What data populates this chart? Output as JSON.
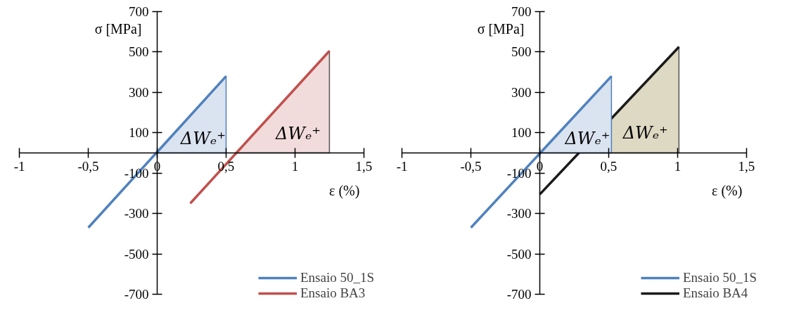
{
  "chart_data": [
    {
      "type": "line",
      "xlabel": "ε (%)",
      "ylabel": "σ [MPa]",
      "xlim": [
        -1,
        1.5
      ],
      "ylim": [
        -700,
        700
      ],
      "xticks": [
        -1,
        {
          "value": -0.5,
          "label": "-0,5"
        },
        0,
        {
          "value": 0.5,
          "label": "0,5"
        },
        1,
        {
          "value": 1.5,
          "label": "1,5"
        }
      ],
      "yticks": [
        -700,
        -500,
        -300,
        -100,
        100,
        300,
        500,
        700
      ],
      "grid": false,
      "legend": "bottom right",
      "line_style": "solid",
      "marker": "none",
      "series": [
        {
          "type": "area",
          "color": "#dae3f0",
          "x": [
            0,
            0.5
          ],
          "values": [
            0,
            380
          ]
        },
        {
          "type": "area",
          "color": "#f2dcdb",
          "x": [
            0.57,
            1.25
          ],
          "values": [
            0,
            505
          ]
        },
        {
          "name": "Ensaio 50_1S",
          "color": "#4f81bd",
          "x": [
            -0.5,
            0.5
          ],
          "values": [
            -370,
            380
          ]
        },
        {
          "name": "Ensaio BA3",
          "color": "#c0504d",
          "x": [
            0.24,
            1.25
          ],
          "values": [
            -250,
            505
          ]
        }
      ],
      "annotations": [
        "ΔWₑ⁺",
        "ΔWₑ⁺"
      ]
    },
    {
      "type": "line",
      "xlabel": "ε (%)",
      "ylabel": "σ [MPa]",
      "xlim": [
        -1,
        1.5
      ],
      "ylim": [
        -700,
        700
      ],
      "xticks": [
        -1,
        {
          "value": -0.5,
          "label": "-0,5"
        },
        0,
        {
          "value": 0.5,
          "label": "0,5"
        },
        1,
        {
          "value": 1.5,
          "label": "1,5"
        }
      ],
      "yticks": [
        -700,
        -500,
        -300,
        -100,
        100,
        300,
        500,
        700
      ],
      "grid": false,
      "legend": "bottom right",
      "line_style": "solid",
      "marker": "none",
      "series": [
        {
          "type": "area",
          "color": "#ddd9c3",
          "x": [
            0.28,
            1.01
          ],
          "values": [
            0,
            525
          ]
        },
        {
          "name": "Ensaio BA4",
          "color": "#1a1a1a",
          "x": [
            0,
            1.01
          ],
          "values": [
            -205,
            525
          ]
        },
        {
          "type": "area",
          "color": "#dae3f0",
          "x": [
            0,
            0.52
          ],
          "values": [
            0,
            380
          ]
        },
        {
          "name": "Ensaio 50_1S",
          "color": "#4f81bd",
          "x": [
            -0.5,
            0.52
          ],
          "values": [
            -370,
            380
          ]
        }
      ],
      "annotations": [
        "ΔWₑ⁺",
        "ΔWₑ⁺"
      ]
    }
  ]
}
